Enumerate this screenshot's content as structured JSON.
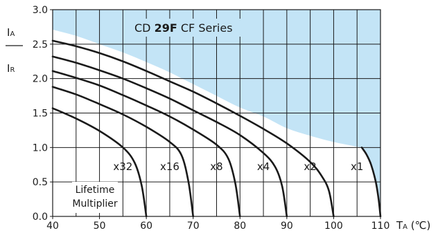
{
  "chart_data": {
    "type": "line",
    "title_prefix": "CD ",
    "title_bold": "29F",
    "title_suffix": " CF Series",
    "ylabel_top_main": "I",
    "ylabel_top_sub": "A",
    "ylabel_bottom_main": "I",
    "ylabel_bottom_sub": "R",
    "xlabel_main": "T",
    "xlabel_sub": "A",
    "xlabel_unit": " (℃)",
    "xlim": [
      40,
      110
    ],
    "ylim": [
      0.0,
      3.0
    ],
    "x_ticks": [
      "40",
      "50",
      "60",
      "70",
      "80",
      "90",
      "100",
      "110"
    ],
    "x_tick_values": [
      40,
      50,
      60,
      70,
      80,
      90,
      100,
      110
    ],
    "y_ticks": [
      "0.0",
      "0.5",
      "1.0",
      "1.5",
      "2.0",
      "2.5",
      "3.0"
    ],
    "y_tick_values": [
      0,
      0.5,
      1.0,
      1.5,
      2.0,
      2.5,
      3.0
    ],
    "grid": true,
    "grid_x_step": 5,
    "grid_y_step": 0.5,
    "lifetime_note_line1": "Lifetime",
    "lifetime_note_line2": "Multiplier",
    "fill_color": "#c3e4f6",
    "line_color": "#1a1a1a",
    "boundary": [
      {
        "x": 40,
        "y": 2.71
      },
      {
        "x": 45,
        "y": 2.62
      },
      {
        "x": 50,
        "y": 2.5
      },
      {
        "x": 55,
        "y": 2.38
      },
      {
        "x": 60,
        "y": 2.24
      },
      {
        "x": 65,
        "y": 2.09
      },
      {
        "x": 70,
        "y": 1.92
      },
      {
        "x": 75,
        "y": 1.75
      },
      {
        "x": 80,
        "y": 1.58
      },
      {
        "x": 85,
        "y": 1.45
      },
      {
        "x": 90,
        "y": 1.28
      },
      {
        "x": 95,
        "y": 1.17
      },
      {
        "x": 100,
        "y": 1.08
      },
      {
        "x": 106,
        "y": 1.0
      }
    ],
    "series": [
      {
        "name": "x1",
        "points": [
          {
            "x": 106,
            "y": 1.0
          },
          {
            "x": 107,
            "y": 0.9
          },
          {
            "x": 108,
            "y": 0.75
          },
          {
            "x": 109,
            "y": 0.5
          },
          {
            "x": 109.6,
            "y": 0.25
          },
          {
            "x": 110,
            "y": 0.0
          }
        ],
        "label_x": 105
      },
      {
        "name": "x2",
        "points": [
          {
            "x": 40,
            "y": 2.55
          },
          {
            "x": 45,
            "y": 2.47
          },
          {
            "x": 50,
            "y": 2.37
          },
          {
            "x": 55,
            "y": 2.25
          },
          {
            "x": 60,
            "y": 2.11
          },
          {
            "x": 65,
            "y": 1.96
          },
          {
            "x": 70,
            "y": 1.81
          },
          {
            "x": 75,
            "y": 1.64
          },
          {
            "x": 80,
            "y": 1.46
          },
          {
            "x": 85,
            "y": 1.27
          },
          {
            "x": 90,
            "y": 1.06
          },
          {
            "x": 95,
            "y": 0.79
          },
          {
            "x": 97.5,
            "y": 0.58
          },
          {
            "x": 99,
            "y": 0.37
          },
          {
            "x": 100,
            "y": 0.0
          }
        ],
        "label_x": 95
      },
      {
        "name": "x4",
        "points": [
          {
            "x": 40,
            "y": 2.32
          },
          {
            "x": 45,
            "y": 2.23
          },
          {
            "x": 50,
            "y": 2.12
          },
          {
            "x": 55,
            "y": 2.0
          },
          {
            "x": 60,
            "y": 1.86
          },
          {
            "x": 65,
            "y": 1.71
          },
          {
            "x": 70,
            "y": 1.54
          },
          {
            "x": 75,
            "y": 1.37
          },
          {
            "x": 80,
            "y": 1.18
          },
          {
            "x": 85,
            "y": 0.92
          },
          {
            "x": 87.5,
            "y": 0.72
          },
          {
            "x": 89,
            "y": 0.44
          },
          {
            "x": 90,
            "y": 0.0
          }
        ],
        "label_x": 85
      },
      {
        "name": "x8",
        "points": [
          {
            "x": 40,
            "y": 2.11
          },
          {
            "x": 45,
            "y": 2.01
          },
          {
            "x": 50,
            "y": 1.9
          },
          {
            "x": 55,
            "y": 1.76
          },
          {
            "x": 60,
            "y": 1.61
          },
          {
            "x": 65,
            "y": 1.45
          },
          {
            "x": 70,
            "y": 1.26
          },
          {
            "x": 75,
            "y": 1.04
          },
          {
            "x": 77.5,
            "y": 0.84
          },
          {
            "x": 79,
            "y": 0.48
          },
          {
            "x": 80,
            "y": 0.0
          }
        ],
        "label_x": 75
      },
      {
        "name": "x16",
        "points": [
          {
            "x": 40,
            "y": 1.88
          },
          {
            "x": 45,
            "y": 1.77
          },
          {
            "x": 50,
            "y": 1.63
          },
          {
            "x": 55,
            "y": 1.48
          },
          {
            "x": 60,
            "y": 1.3
          },
          {
            "x": 65,
            "y": 1.08
          },
          {
            "x": 67.5,
            "y": 0.89
          },
          {
            "x": 69,
            "y": 0.5
          },
          {
            "x": 70,
            "y": 0.0
          }
        ],
        "label_x": 65
      },
      {
        "name": "x32",
        "points": [
          {
            "x": 40,
            "y": 1.57
          },
          {
            "x": 45,
            "y": 1.42
          },
          {
            "x": 50,
            "y": 1.24
          },
          {
            "x": 55,
            "y": 1.0
          },
          {
            "x": 57.5,
            "y": 0.78
          },
          {
            "x": 59,
            "y": 0.45
          },
          {
            "x": 60,
            "y": 0.0
          }
        ],
        "label_x": 55
      }
    ]
  }
}
